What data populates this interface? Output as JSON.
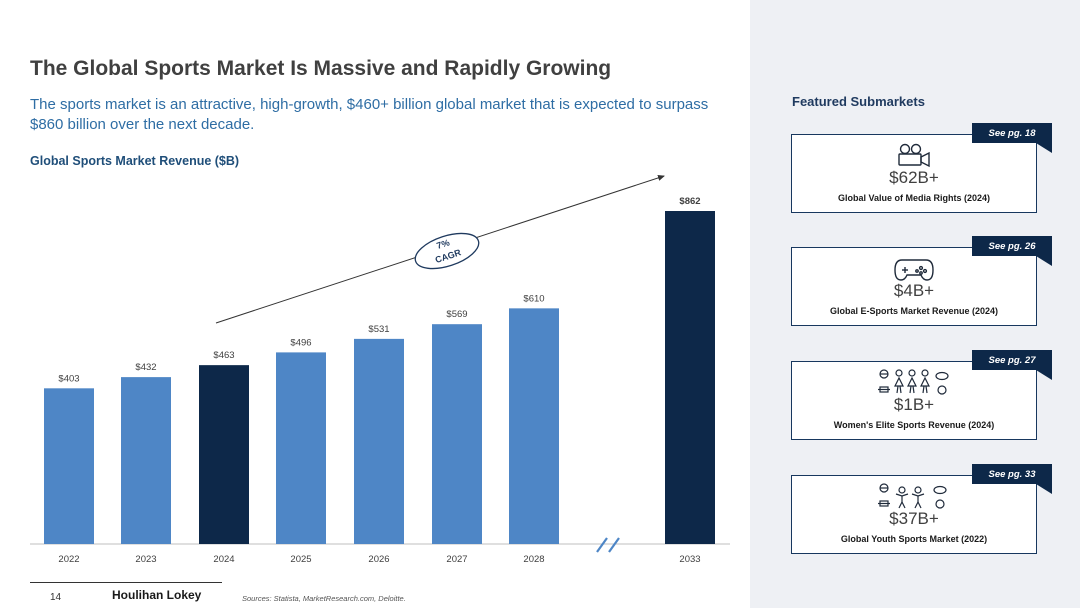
{
  "header": {
    "title": "The Global Sports Market Is Massive and Rapidly Growing",
    "subtitle": "The sports market is an attractive, high-growth, $460+ billion global market that is expected to surpass $860 billion over the next decade."
  },
  "chart_data": {
    "type": "bar",
    "title": "Global Sports Market Revenue ($B)",
    "categories": [
      "2022",
      "2023",
      "2024",
      "2025",
      "2026",
      "2027",
      "2028",
      "2033"
    ],
    "values": [
      403,
      432,
      463,
      496,
      531,
      569,
      610,
      862
    ],
    "labels": [
      "$403",
      "$432",
      "$463",
      "$496",
      "$531",
      "$569",
      "$610",
      "$862"
    ],
    "highlighted": [
      "2024",
      "2033"
    ],
    "axis_break_between": [
      "2028",
      "2033"
    ],
    "annotation": {
      "line1": "7%",
      "line2": "CAGR"
    },
    "ylim": [
      0,
      862
    ],
    "xlabel": "",
    "ylabel": ""
  },
  "colors": {
    "bar": "#4e86c6",
    "highlight": "#0d2849",
    "title": "#404040",
    "subtitle": "#2e6da4",
    "panel": "#eef0f4"
  },
  "sidebar": {
    "title": "Featured Submarkets",
    "cards": [
      {
        "tag": "See pg. 18",
        "icon": "video-camera-icon",
        "value": "$62B+",
        "desc": "Global Value of Media Rights (2024)"
      },
      {
        "tag": "See pg. 26",
        "icon": "game-controller-icon",
        "value": "$4B+",
        "desc": "Global E-Sports Market Revenue (2024)"
      },
      {
        "tag": "See pg. 27",
        "icon": "womens-sports-icon",
        "value": "$1B+",
        "desc": "Women's Elite Sports Revenue (2024)"
      },
      {
        "tag": "See pg. 33",
        "icon": "youth-sports-icon",
        "value": "$37B+",
        "desc": "Global Youth Sports Market (2022)"
      }
    ]
  },
  "footer": {
    "page": "14",
    "brand": "Houlihan Lokey",
    "source": "Sources: Statista, MarketResearch.com, Deloitte."
  }
}
